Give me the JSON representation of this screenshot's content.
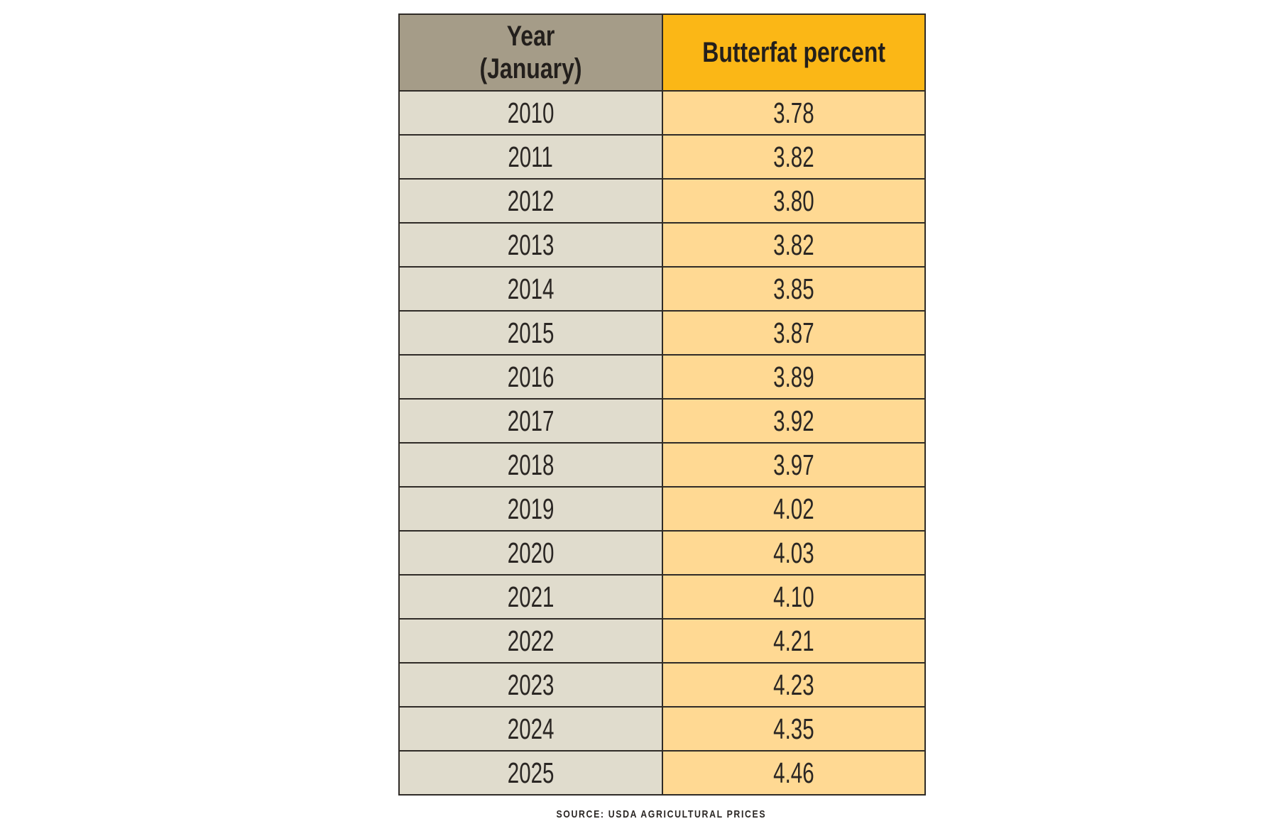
{
  "table": {
    "headers": {
      "year_line1": "Year",
      "year_line2": "(January)",
      "butterfat": "Butterfat percent"
    },
    "rows": [
      {
        "year": "2010",
        "butterfat": "3.78"
      },
      {
        "year": "2011",
        "butterfat": "3.82"
      },
      {
        "year": "2012",
        "butterfat": "3.80"
      },
      {
        "year": "2013",
        "butterfat": "3.82"
      },
      {
        "year": "2014",
        "butterfat": "3.85"
      },
      {
        "year": "2015",
        "butterfat": "3.87"
      },
      {
        "year": "2016",
        "butterfat": "3.89"
      },
      {
        "year": "2017",
        "butterfat": "3.92"
      },
      {
        "year": "2018",
        "butterfat": "3.97"
      },
      {
        "year": "2019",
        "butterfat": "4.02"
      },
      {
        "year": "2020",
        "butterfat": "4.03"
      },
      {
        "year": "2021",
        "butterfat": "4.10"
      },
      {
        "year": "2022",
        "butterfat": "4.21"
      },
      {
        "year": "2023",
        "butterfat": "4.23"
      },
      {
        "year": "2024",
        "butterfat": "4.35"
      },
      {
        "year": "2025",
        "butterfat": "4.46"
      }
    ]
  },
  "source": "SOURCE: USDA AGRICULTURAL PRICES",
  "colors": {
    "header_year_bg": "#a59c88",
    "header_butterfat_bg": "#fbb716",
    "cell_year_bg": "#e0dccd",
    "cell_butterfat_bg": "#ffd993",
    "border": "#2f2b27",
    "text": "#231f1c"
  },
  "chart_data": {
    "type": "table",
    "title": "",
    "columns": [
      "Year (January)",
      "Butterfat percent"
    ],
    "categories": [
      "2010",
      "2011",
      "2012",
      "2013",
      "2014",
      "2015",
      "2016",
      "2017",
      "2018",
      "2019",
      "2020",
      "2021",
      "2022",
      "2023",
      "2024",
      "2025"
    ],
    "series": [
      {
        "name": "Butterfat percent",
        "values": [
          3.78,
          3.82,
          3.8,
          3.82,
          3.85,
          3.87,
          3.89,
          3.92,
          3.97,
          4.02,
          4.03,
          4.1,
          4.21,
          4.23,
          4.35,
          4.46
        ]
      }
    ],
    "source": "SOURCE: USDA AGRICULTURAL PRICES"
  }
}
